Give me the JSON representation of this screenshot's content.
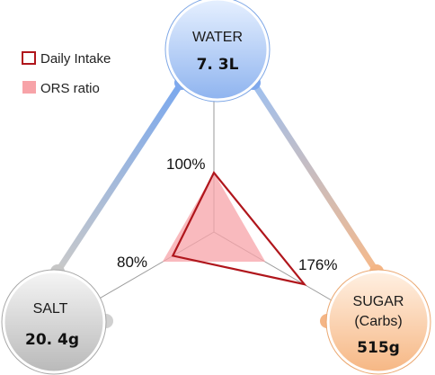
{
  "legend": {
    "daily_intake_label": "Daily Intake",
    "ors_ratio_label": "ORS ratio"
  },
  "nodes": {
    "water": {
      "label": "WATER",
      "value": "7. 3L"
    },
    "salt": {
      "label": "SALT",
      "value": "20. 4g"
    },
    "sugar": {
      "label": "SUGAR",
      "sublabel": "(Carbs)",
      "value": "515g"
    }
  },
  "ratios": {
    "water": {
      "label": "100%",
      "value": 100
    },
    "salt": {
      "label": "80%",
      "value": 80
    },
    "sugar": {
      "label": "176%",
      "value": 176
    }
  },
  "ors_ratio": {
    "water": 100,
    "salt": 100,
    "sugar": 100
  },
  "colors": {
    "water_node": "#a9c8f5",
    "salt_node": "#d4d4d4",
    "sugar_node": "#f9d2ad",
    "daily_intake_outline": "#b0161c",
    "ors_fill": "#f7a3a8",
    "water_link": "#8db4ee",
    "salt_link": "#c8c8c8",
    "sugar_link": "#f6b98a"
  }
}
